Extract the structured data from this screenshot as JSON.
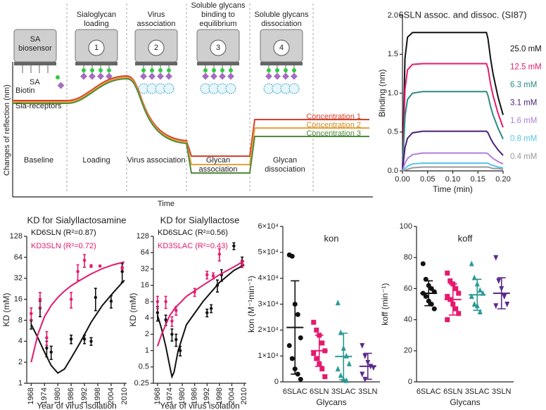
{
  "diagram": {
    "steps": [
      {
        "label": [
          "Sialoglycan",
          "loading"
        ],
        "number": "1"
      },
      {
        "label": [
          "Virus",
          "association"
        ],
        "number": "2"
      },
      {
        "label": [
          "Soluble glycans",
          "binding to",
          "equilibrium"
        ],
        "number": "3"
      },
      {
        "label": [
          "Soluble glycans",
          "dissociation"
        ],
        "number": "4"
      }
    ],
    "sensor_label": [
      "SA",
      "biosensor"
    ],
    "sa": "SA",
    "biotin": "Biotin",
    "receptors": "Sia-receptors",
    "phases": [
      [
        "Baseline"
      ],
      [
        "Loading"
      ],
      [
        "Virus association"
      ],
      [
        "Glycan",
        "association"
      ],
      [
        "Glycan",
        "dissociation"
      ]
    ],
    "concentrations": [
      "Concentration 1",
      "Concentration 2",
      "Concentration 3"
    ],
    "y_label": "Changes of reflection (nm)",
    "x_label": "Time"
  },
  "chart_data": [
    {
      "type": "line",
      "title": "6SLN assoc. and dissoc. (SI87)",
      "x_label": "Time (min)",
      "y_label": "Binding (nm)",
      "xlim": [
        0,
        0.2
      ],
      "ylim": [
        0,
        2
      ],
      "xticks": [
        {
          "value": 0,
          "label": "0.00"
        },
        {
          "value": 0.05,
          "label": "0.05"
        },
        {
          "value": 0.1,
          "label": "0.10"
        },
        {
          "value": 0.15,
          "label": "0.15"
        },
        {
          "value": 0.2,
          "label": "0.20"
        }
      ],
      "yticks": [
        {
          "value": 0,
          "label": "0.0"
        },
        {
          "value": 0.5,
          "label": "0.5"
        },
        {
          "value": 1,
          "label": "1.0"
        },
        {
          "value": 1.5,
          "label": "1.5"
        },
        {
          "value": 2,
          "label": "2.0"
        }
      ],
      "x": [
        0,
        0.005,
        0.01,
        0.02,
        0.04,
        0.08,
        0.167,
        0.17,
        0.175,
        0.18,
        0.19,
        0.2
      ],
      "series": [
        {
          "name": "25.0 mM",
          "color": "#111111",
          "values": [
            0,
            1.45,
            1.72,
            1.78,
            1.78,
            1.78,
            1.78,
            1.7,
            1.45,
            1.25,
            0.95,
            0.72
          ]
        },
        {
          "name": "12.5 mM",
          "color": "#e5196e",
          "values": [
            0,
            1.05,
            1.3,
            1.37,
            1.38,
            1.38,
            1.38,
            1.32,
            1.12,
            0.97,
            0.74,
            0.56
          ]
        },
        {
          "name": "6.3 mM",
          "color": "#2a8a86",
          "values": [
            0,
            0.7,
            0.92,
            1.0,
            1.02,
            1.02,
            1.02,
            0.97,
            0.83,
            0.72,
            0.55,
            0.41
          ]
        },
        {
          "name": "3.1 mM",
          "color": "#4b1f7a",
          "values": [
            0,
            0.3,
            0.42,
            0.49,
            0.51,
            0.51,
            0.51,
            0.49,
            0.42,
            0.36,
            0.27,
            0.2
          ]
        },
        {
          "name": "1.6 mM",
          "color": "#b27de0",
          "values": [
            0,
            0.1,
            0.16,
            0.21,
            0.23,
            0.23,
            0.23,
            0.22,
            0.19,
            0.16,
            0.12,
            0.09
          ]
        },
        {
          "name": "0.8 mM",
          "color": "#58c5ec",
          "values": [
            0,
            0.03,
            0.06,
            0.09,
            0.1,
            0.1,
            0.1,
            0.1,
            0.08,
            0.07,
            0.05,
            0.04
          ]
        },
        {
          "name": "0.4 mM",
          "color": "#999999",
          "values": [
            0,
            0.01,
            0.02,
            0.04,
            0.05,
            0.05,
            0.05,
            0.05,
            0.04,
            0.03,
            0.03,
            0.02
          ]
        }
      ]
    },
    {
      "type": "scatter",
      "title": "KD for Sialyllactosamine",
      "x_label": "Year of virus isolation",
      "y_label": "KD (mM)",
      "ylog": true,
      "xlim": [
        1966,
        2011
      ],
      "ylim": [
        1,
        128
      ],
      "xticks": [
        1968,
        1974,
        1980,
        1986,
        1992,
        1998,
        2004,
        2010
      ],
      "yticks": [
        1,
        2,
        4,
        8,
        16,
        32,
        64,
        128
      ],
      "fit_x": [
        1968,
        1971,
        1974,
        1977,
        1980,
        1983,
        1986,
        1990,
        1995,
        2000,
        2005,
        2010
      ],
      "series": [
        {
          "name": "KD6SLN (R²=0.87)",
          "color": "#111111",
          "x": [
            1968,
            1972,
            1975,
            1977,
            1986,
            1992,
            1995,
            1997,
            2004,
            2009
          ],
          "values": [
            8,
            12,
            3.2,
            2.8,
            4.3,
            4.3,
            4,
            17,
            15,
            40
          ],
          "errors": [
            2,
            3,
            0.8,
            0.6,
            0.6,
            0.6,
            0.5,
            6,
            3,
            12
          ],
          "fit_values": [
            7,
            4.5,
            2.8,
            1.8,
            1.4,
            1.6,
            2.3,
            3.8,
            7.5,
            13,
            20,
            30
          ]
        },
        {
          "name": "KD3SLN (R²=0.72)",
          "color": "#e5196e",
          "x": [
            1968,
            1972,
            1975,
            1986,
            1989,
            1992,
            1995,
            1999,
            2009
          ],
          "values": [
            10,
            16,
            4.5,
            16,
            40,
            58,
            48,
            48,
            45
          ],
          "errors": [
            2,
            4,
            1,
            4,
            10,
            12,
            2,
            1,
            2
          ],
          "fit_values": [
            2,
            5,
            9,
            13,
            17,
            21,
            25,
            30,
            37,
            44,
            50,
            55
          ]
        }
      ]
    },
    {
      "type": "scatter",
      "title": "KD for Sialyllactose",
      "x_label": "Year of virus isolation",
      "y_label": "KD (mM)",
      "ylog": true,
      "xlim": [
        1966,
        2011
      ],
      "ylim": [
        0.25,
        128
      ],
      "xticks": [
        1968,
        1974,
        1980,
        1986,
        1992,
        1998,
        2004,
        2010
      ],
      "yticks": [
        0.25,
        0.5,
        1,
        2,
        4,
        8,
        16,
        32,
        64,
        128
      ],
      "fit_x": [
        1968,
        1970,
        1972,
        1974,
        1975,
        1976,
        1978,
        1982,
        1990,
        1998,
        2005,
        2010
      ],
      "series": [
        {
          "name": "KD6SLAC (R²=0.56)",
          "color": "#111111",
          "x": [
            1968,
            1972,
            1975,
            1977,
            1979,
            1992,
            1994,
            1997,
            1999,
            2005,
            2009
          ],
          "values": [
            5,
            3.7,
            2,
            1.6,
            1,
            5,
            6,
            16,
            25,
            85,
            45
          ],
          "errors": [
            1.5,
            0.8,
            0.5,
            0.4,
            0.2,
            0.8,
            1,
            4,
            6,
            12,
            8
          ],
          "fit_values": [
            4.5,
            2.5,
            1.2,
            0.5,
            0.33,
            0.4,
            1,
            3,
            8,
            18,
            30,
            38
          ]
        },
        {
          "name": "KD3SLAC (R²=0.43)",
          "color": "#e5196e",
          "x": [
            1968,
            1972,
            1975,
            1977,
            1986,
            1992,
            1995,
            1998,
            2009
          ],
          "values": [
            8,
            8,
            3.5,
            5.5,
            12,
            25,
            24,
            60,
            40
          ],
          "errors": [
            2,
            2,
            0.7,
            1,
            2,
            4,
            3,
            15,
            6
          ],
          "fit_values": [
            1.2,
            2,
            3,
            4.5,
            5,
            5.8,
            7,
            10,
            16,
            25,
            35,
            45
          ]
        }
      ]
    },
    {
      "type": "dot",
      "title": "kon",
      "x_label": "Glycans",
      "y_label": "kon (M⁻¹min⁻¹)",
      "ylim": [
        0,
        60000
      ],
      "yticks": [
        0,
        {
          "value": 10000,
          "label": "1×10⁴"
        },
        {
          "value": 20000,
          "label": "2×10⁴"
        },
        {
          "value": 30000,
          "label": "3×10⁴"
        },
        {
          "value": 40000,
          "label": "4×10⁴"
        },
        {
          "value": 50000,
          "label": "5×10⁴"
        },
        {
          "value": 60000,
          "label": "6×10⁴"
        }
      ],
      "categories": [
        "6SLAC",
        "6SLN",
        "3SLAC",
        "3SLN"
      ],
      "colors": [
        "#111111",
        "#e5196e",
        "#2a9a94",
        "#5b2a8a"
      ],
      "markers": [
        "circle",
        "square",
        "triangle",
        "triangle-down"
      ],
      "points": [
        [
          49000,
          48500,
          30000,
          26000,
          17000,
          14000,
          9000,
          5000,
          3000,
          1000
        ],
        [
          23000,
          20000,
          18000,
          15000,
          12000,
          11000,
          9000,
          7000,
          5000,
          2000
        ],
        [
          30500,
          19000,
          13000,
          10000,
          7000,
          5000,
          2500,
          1000,
          500
        ],
        [
          14000,
          10000,
          7500,
          6000,
          5500,
          3000,
          1000
        ]
      ],
      "means": [
        21000,
        12000,
        9800,
        6000
      ],
      "sds": [
        18000,
        6000,
        9000,
        5000
      ]
    },
    {
      "type": "dot",
      "title": "koff",
      "x_label": "Glycans",
      "y_label": "koff (min⁻¹)",
      "ylim": [
        0,
        100
      ],
      "yticks": [
        0,
        20,
        40,
        60,
        80,
        100
      ],
      "categories": [
        "6SLAC",
        "6SLN",
        "3SLAC",
        "3SLN"
      ],
      "colors": [
        "#111111",
        "#e5196e",
        "#2a9a94",
        "#5b2a8a"
      ],
      "markers": [
        "circle",
        "square",
        "triangle",
        "triangle-down"
      ],
      "points": [
        [
          76,
          66,
          62,
          60,
          58,
          57,
          55,
          52,
          50,
          47
        ],
        [
          70,
          65,
          63,
          60,
          57,
          55,
          53,
          50,
          47,
          44,
          40
        ],
        [
          76,
          67,
          63,
          59,
          57,
          55,
          50,
          49,
          45
        ],
        [
          80,
          65,
          60,
          55,
          50,
          49
        ]
      ],
      "means": [
        57,
        53,
        56,
        57
      ],
      "sds": [
        8,
        10,
        10,
        10
      ]
    }
  ]
}
